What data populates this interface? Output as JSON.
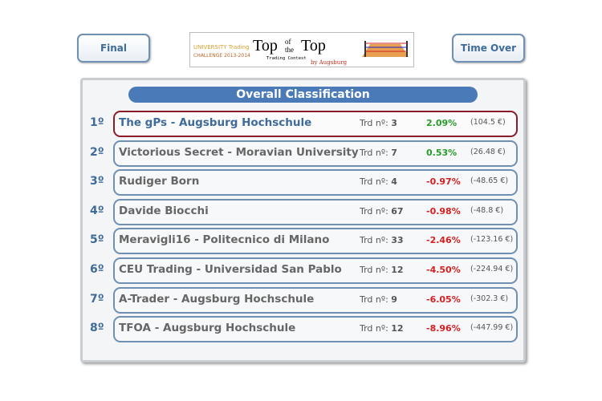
{
  "header": {
    "left_button": "Final",
    "right_button": "Time Over",
    "logo": {
      "line1": "UNIVERSITY Trading",
      "line2": "CHALLENGE 2013-2014",
      "title_top": "Top",
      "title_of": "of",
      "title_the": "the",
      "title_bottom": "Top",
      "subtitle": "Trading Contest",
      "by": "by Augsburg"
    }
  },
  "board": {
    "title": "Overall Classification",
    "trd_label": "Trd nº:",
    "rows": [
      {
        "rank": "1º",
        "name": "The gPs - Augsburg Hochschule",
        "trades": "3",
        "return": "2.09%",
        "amount": "(104.5 €)"
      },
      {
        "rank": "2º",
        "name": "Victorious Secret - Moravian University",
        "trades": "7",
        "return": "0.53%",
        "amount": "(26.48 €)"
      },
      {
        "rank": "3º",
        "name": "Rudiger Born",
        "trades": "4",
        "return": "-0.97%",
        "amount": "(-48.65 €)"
      },
      {
        "rank": "4º",
        "name": "Davide Biocchi",
        "trades": "67",
        "return": "-0.98%",
        "amount": "(-48.8 €)"
      },
      {
        "rank": "5º",
        "name": "Meravigli16 - Politecnico di Milano",
        "trades": "33",
        "return": "-2.46%",
        "amount": "(-123.16 €)"
      },
      {
        "rank": "6º",
        "name": "CEU Trading - Universidad San Pablo",
        "trades": "12",
        "return": "-4.50%",
        "amount": "(-224.94 €)"
      },
      {
        "rank": "7º",
        "name": "A-Trader - Augsburg Hochschule",
        "trades": "9",
        "return": "-6.05%",
        "amount": "(-302.3 €)"
      },
      {
        "rank": "8º",
        "name": "TFOA - Augsburg Hochschule",
        "trades": "12",
        "return": "-8.96%",
        "amount": "(-447.99 €)"
      }
    ]
  }
}
